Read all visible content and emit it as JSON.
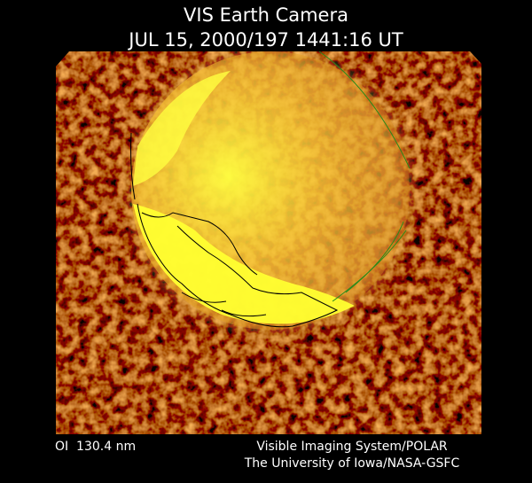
{
  "header": {
    "title": "VIS Earth Camera",
    "timestamp": "JUL 15, 2000/197 1441:16 UT"
  },
  "footer": {
    "wavelength": "OI  130.4 nm",
    "credit_line1": "Visible Imaging System/POLAR",
    "credit_line2": "The University of Iowa/NASA-GSFC"
  }
}
